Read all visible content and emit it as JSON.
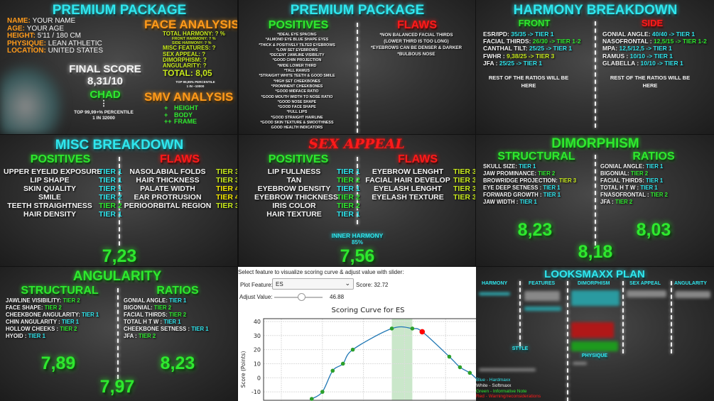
{
  "colors": {
    "cyan": "#2fe6ee",
    "green": "#2ee82e",
    "lime": "#c8ea1c",
    "yellow": "#f2e600",
    "white": "#f4f4f4",
    "orange": "#ff9a1a",
    "red": "#ff1a1a"
  },
  "overview": {
    "title": "PREMIUM PACKAGE",
    "info": [
      {
        "k": "NAME:",
        "v": "YOUR NAME"
      },
      {
        "k": "AGE:",
        "v": "YOUR AGE"
      },
      {
        "k": "HEIGHT:",
        "v": "5'11 / 180 CM"
      },
      {
        "k": "PHYSIQUE:",
        "v": "LEAN ATHLETIC"
      },
      {
        "k": "LOCATION:",
        "v": "UNITED STATES"
      }
    ],
    "final_score_label": "FINAL SCORE",
    "final_score": "8,31/10",
    "rank": "CHAD",
    "rank_dots": "⋮",
    "percentile": "TOP 99,99+% PERCENTILE",
    "rarity": "1 IN 32000",
    "face_title": "FACE ANALYSIS",
    "face": {
      "total_harmony": "TOTAL HARMONY: ? %",
      "front_harmony": "FRONT HARMONY: ? %",
      "side_harmony": "SIDE HARMONY: ? %",
      "misc": "MISC FEATURES: ?",
      "sex_appeal": "SEX APPEAL: ?",
      "dimorphism": "DIMORPHISM: ?",
      "angularity": "ANGULARITY: ?",
      "total": "TOTAL: 8,05",
      "percentile": "TOP 99,99% PERCENTILE",
      "rarity": "1 IN ~10000"
    },
    "smv_title": "SMV ANALYSIS",
    "smv": [
      {
        "sign": "+",
        "label": "HEIGHT"
      },
      {
        "sign": "+",
        "label": "BODY"
      },
      {
        "sign": "++",
        "label": "FRAME"
      }
    ]
  },
  "features": {
    "title": "PREMIUM PACKAGE",
    "positives_title": "POSITIVES",
    "flaws_title": "FLAWS",
    "positives": [
      "*IDEAL EYE SPACING",
      "*ALMOND EYE BLUE SHAPE EYES",
      "*THICK & POSITIVELY TILTED EYEBROWS",
      "*LOW SET EYEBROWS",
      "*DECENT JAWLINE VISIBILITY",
      "*GOOD CHIN PROJECTION",
      "*WIDE LOWER THIRD",
      "*TALL RAMUS",
      "*STRAIGHT WHITE TEETH & GOOD SMILE",
      "*HIGH SET CHEEKBONES",
      "*PROMINENT CHEEKBONES",
      "*GOOD MIDFACE RATIO",
      "*GOOD MOUTH WIDTH TO NOSE RATIO",
      "*GOOD NOSE SHAPE",
      "*GOOD FACE SHAPE",
      "*FULL LIPS",
      "*GOOD STRAIGHT HAIRLINE",
      "*GOOD SKIN TEXTURE & SMOOTHNESS",
      "GOOD HEALTH INDICATORS"
    ],
    "flaws": [
      "*NON BALANCED FACIAL THIRDS",
      "(LOWER THIRD IS TOO LONG)",
      "*EYEBROWS CAN BE DENSER & DARKER",
      "*BULBOUS NOSE"
    ]
  },
  "harmony": {
    "title": "HARMONY BREAKDOWN",
    "front_title": "FRONT",
    "side_title": "SIDE",
    "front": [
      {
        "label": "ESR/IPD:",
        "value": "35/35 -> TIER 1",
        "color": "cyan"
      },
      {
        "label": "FACIAL THIRDS:",
        "value": "26/30 -> TIER 1-2",
        "color": "green"
      },
      {
        "label": "CANTHAL TILT:",
        "value": "25/25 -> TIER 1",
        "color": "cyan"
      },
      {
        "label": "FWHR :",
        "value": "9,38/25 -> TIER 3",
        "color": "lime"
      },
      {
        "label": "JFA :",
        "value": "25/25 -> TIER 1",
        "color": "cyan"
      }
    ],
    "side": [
      {
        "label": "GONIAL ANGLE:",
        "value": "40/40 -> TIER 1",
        "color": "cyan"
      },
      {
        "label": "NASOFRONTAL :",
        "value": "12,5/15 -> TIER 1-2",
        "color": "green"
      },
      {
        "label": "MPA:",
        "value": "12,5/12,5 -> TIER 1",
        "color": "cyan"
      },
      {
        "label": "RAMUS :",
        "value": "10/10 -> TIER 1",
        "color": "cyan"
      },
      {
        "label": "GLABELLA :",
        "value": "10/10 -> TIER 1",
        "color": "cyan"
      }
    ],
    "rest_front": "REST OF THE RATIOS WILL BE HERE",
    "rest_side": "REST OF THE RATIOS WILL BE HERE"
  },
  "misc": {
    "title": "MISC BREAKDOWN",
    "positives_title": "POSITIVES",
    "flaws_title": "FLAWS",
    "score": "7,23",
    "positives": [
      {
        "label": "UPPER EYELID EXPOSURE",
        "value": "TIER 1",
        "color": "cyan"
      },
      {
        "label": "LIP SHAPE",
        "value": "TIER 1",
        "color": "cyan"
      },
      {
        "label": "SKIN QUALITY",
        "value": "TIER 1",
        "color": "cyan"
      },
      {
        "label": "SMILE",
        "value": "TIER 2",
        "color": "cyan"
      },
      {
        "label": "TEETH STRAIGHTNESS",
        "value": "TIER 2",
        "color": "green"
      },
      {
        "label": "HAIR DENSITY",
        "value": "TIER 1",
        "color": "cyan"
      }
    ],
    "flaws": [
      {
        "label": "NASOLABIAL FOLDS",
        "value": "TIER 3",
        "color": "lime"
      },
      {
        "label": "HAIR THICKNESS",
        "value": "TIER 3",
        "color": "lime"
      },
      {
        "label": "PALATE WIDTH",
        "value": "TIER 4",
        "color": "yellow"
      },
      {
        "label": "EAR PROTRUSION",
        "value": "TIER 4",
        "color": "yellow"
      },
      {
        "label": "PERIOORBITAL REGION",
        "value": "TIER 3",
        "color": "lime"
      }
    ]
  },
  "sex_appeal": {
    "title": "SEX APPEAL",
    "positives_title": "POSITIVES",
    "flaws_title": "FLAWS",
    "inner_harmony_label": "INNER HARMONY",
    "inner_harmony": "85%",
    "score": "7,56",
    "positives": [
      {
        "label": "LIP FULLNESS",
        "value": "TIER 1",
        "color": "cyan"
      },
      {
        "label": "TAN",
        "value": "TIER 2",
        "color": "green"
      },
      {
        "label": "EYEBROW DENSITY",
        "value": "TIER 1",
        "color": "cyan"
      },
      {
        "label": "EYEBROW THICKNESS",
        "value": "TIER 2",
        "color": "green"
      },
      {
        "label": "IRIS COLOR",
        "value": "TIER 2",
        "color": "green"
      },
      {
        "label": "HAIR TEXTURE",
        "value": "TIER 1",
        "color": "cyan"
      }
    ],
    "flaws": [
      {
        "label": "EYEBROW LENGHT",
        "value": "TIER 3",
        "color": "lime"
      },
      {
        "label": "FACIAL HAIR DEVELOP",
        "value": "TIER 3",
        "color": "lime"
      },
      {
        "label": "EYELASH LENGHT",
        "value": "TIER 3",
        "color": "lime"
      },
      {
        "label": "EYELASH TEXTURE",
        "value": "TIER 3",
        "color": "lime"
      }
    ]
  },
  "dimorphism": {
    "title": "DIMORPHISM",
    "structural_title": "STRUCTURAL",
    "ratios_title": "RATIOS",
    "structural_score": "8,23",
    "ratios_score": "8,03",
    "score": "8,18",
    "structural": [
      {
        "label": "SKULL SIZE:",
        "value": "TIER 1",
        "color": "cyan"
      },
      {
        "label": "JAW PROMINANCE:",
        "value": "TIER 2",
        "color": "green"
      },
      {
        "label": "BROWRIDGE PROJECTION:",
        "value": "TIER 3",
        "color": "lime"
      },
      {
        "label": "EYE DEEP SETNESS :",
        "value": "TIER 1",
        "color": "cyan"
      },
      {
        "label": "FORWARD GROWTH :",
        "value": "TIER 1",
        "color": "cyan"
      },
      {
        "label": "JAW WIDTH :",
        "value": "TIER 1",
        "color": "cyan"
      }
    ],
    "ratios": [
      {
        "label": "GONIAL ANGLE:",
        "value": "TIER 1",
        "color": "cyan"
      },
      {
        "label": "BIGONIAL:",
        "value": "TIER 2",
        "color": "green"
      },
      {
        "label": "FACIAL THIRDS:",
        "value": "TIER 1",
        "color": "cyan"
      },
      {
        "label": "TOTAL H T W :",
        "value": "TIER 1",
        "color": "cyan"
      },
      {
        "label": "FNASOFRONTAL :",
        "value": "TIER 2",
        "color": "green"
      },
      {
        "label": "JFA :",
        "value": "TIER 2",
        "color": "green"
      }
    ]
  },
  "angularity": {
    "title": "ANGULARITY",
    "structural_title": "STRUCTURAL",
    "ratios_title": "RATIOS",
    "structural_score": "7,89",
    "ratios_score": "8,23",
    "score": "7,97",
    "structural": [
      {
        "label": "JAWLINE VISIBILITY:",
        "value": "TIER 2",
        "color": "green"
      },
      {
        "label": "FACE SHAPE:",
        "value": "TIER 2",
        "color": "green"
      },
      {
        "label": "CHEEKBONE ANGULARITY:",
        "value": "TIER 1",
        "color": "cyan"
      },
      {
        "label": "CHIN ANGULARITY :",
        "value": "TIER 1",
        "color": "cyan"
      },
      {
        "label": "HOLLOW CHEEKS :",
        "value": "TIER 2",
        "color": "green"
      },
      {
        "label": "HYOID :",
        "value": "TIER 1",
        "color": "cyan"
      }
    ],
    "ratios": [
      {
        "label": "GONIAL ANGLE:",
        "value": "TIER 1",
        "color": "cyan"
      },
      {
        "label": "BIGONIAL:",
        "value": "TIER 2",
        "color": "green"
      },
      {
        "label": "FACIAL THIRDS:",
        "value": "TIER 2",
        "color": "green"
      },
      {
        "label": "TOTAL H T W :",
        "value": "TIER 1",
        "color": "cyan"
      },
      {
        "label": "CHEEKBONE SETNESS :",
        "value": "TIER 1",
        "color": "cyan"
      },
      {
        "label": "JFA :",
        "value": "TIER 2",
        "color": "green"
      }
    ]
  },
  "widget": {
    "instruction": "Select feature to visualize scoring curve & adjust value with slider:",
    "plot_feature_label": "Plot Feature:",
    "plot_feature_value": "ES",
    "score_text": "Score: 32.72",
    "adjust_label": "Adjust Value:",
    "adjust_value": "46.88",
    "slider_fraction": 0.56
  },
  "chart_data": {
    "type": "line",
    "title": "Scoring Curve for ES",
    "ylabel": "Score (Points)",
    "ylim": [
      -15,
      42
    ],
    "yticks": [
      40,
      30,
      20,
      10,
      0,
      -10
    ],
    "grid": true,
    "points_y": [
      -15,
      -10,
      5,
      10,
      20,
      35,
      35,
      15,
      7.5,
      3.5
    ],
    "points_x": [
      0.74,
      1.0,
      1.25,
      1.5,
      1.74,
      2.69,
      3.19,
      4.09,
      4.35,
      4.59
    ],
    "current_point": {
      "x": 3.43,
      "y": 32.72
    },
    "optimal_band": [
      2.69,
      3.19
    ],
    "line_color": "#1f77b4",
    "point_color": "#2ca02c",
    "current_color": "#ff0000",
    "band_color": "#2ca02c"
  },
  "plan": {
    "title": "LOOKSMAXX PLAN",
    "columns": [
      "HARMONY",
      "FEATURES",
      "DIMORPHISM",
      "SEX APPEAL",
      "ANGULARITY"
    ],
    "style": "STYLE",
    "physique": "PHYSIQUE",
    "legend": [
      {
        "text": "Blue - Hardmaxx",
        "color": "cyan"
      },
      {
        "text": "White - Softmaxx",
        "color": "white"
      },
      {
        "text": "Green - Informative Note",
        "color": "green"
      },
      {
        "text": "Red - Warning/reconsiderations",
        "color": "red"
      }
    ]
  }
}
